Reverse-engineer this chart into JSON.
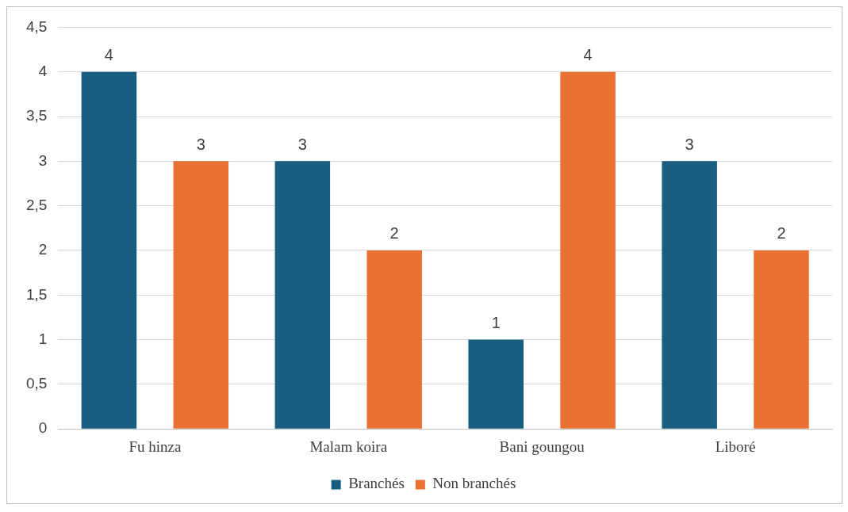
{
  "chart_data": {
    "type": "bar",
    "categories": [
      "Fu hinza",
      "Malam koira",
      "Bani goungou",
      "Liboré"
    ],
    "series": [
      {
        "name": "Branchés",
        "color": "#175e80",
        "values": [
          4,
          3,
          1,
          3
        ]
      },
      {
        "name": "Non branchés",
        "color": "#e97132",
        "values": [
          3,
          2,
          4,
          2
        ]
      }
    ],
    "ylim": [
      0,
      4.5
    ],
    "yticks": [
      0,
      {
        "value": 0.5,
        "label": "0,5"
      },
      1,
      {
        "value": 1.5,
        "label": "1,5"
      },
      2,
      {
        "value": 2.5,
        "label": "2,5"
      },
      3,
      {
        "value": 3.5,
        "label": "3,5"
      },
      4,
      {
        "value": 4.5,
        "label": "4,5"
      }
    ],
    "grid": "y",
    "legend": "bottom",
    "data_labels": true
  }
}
